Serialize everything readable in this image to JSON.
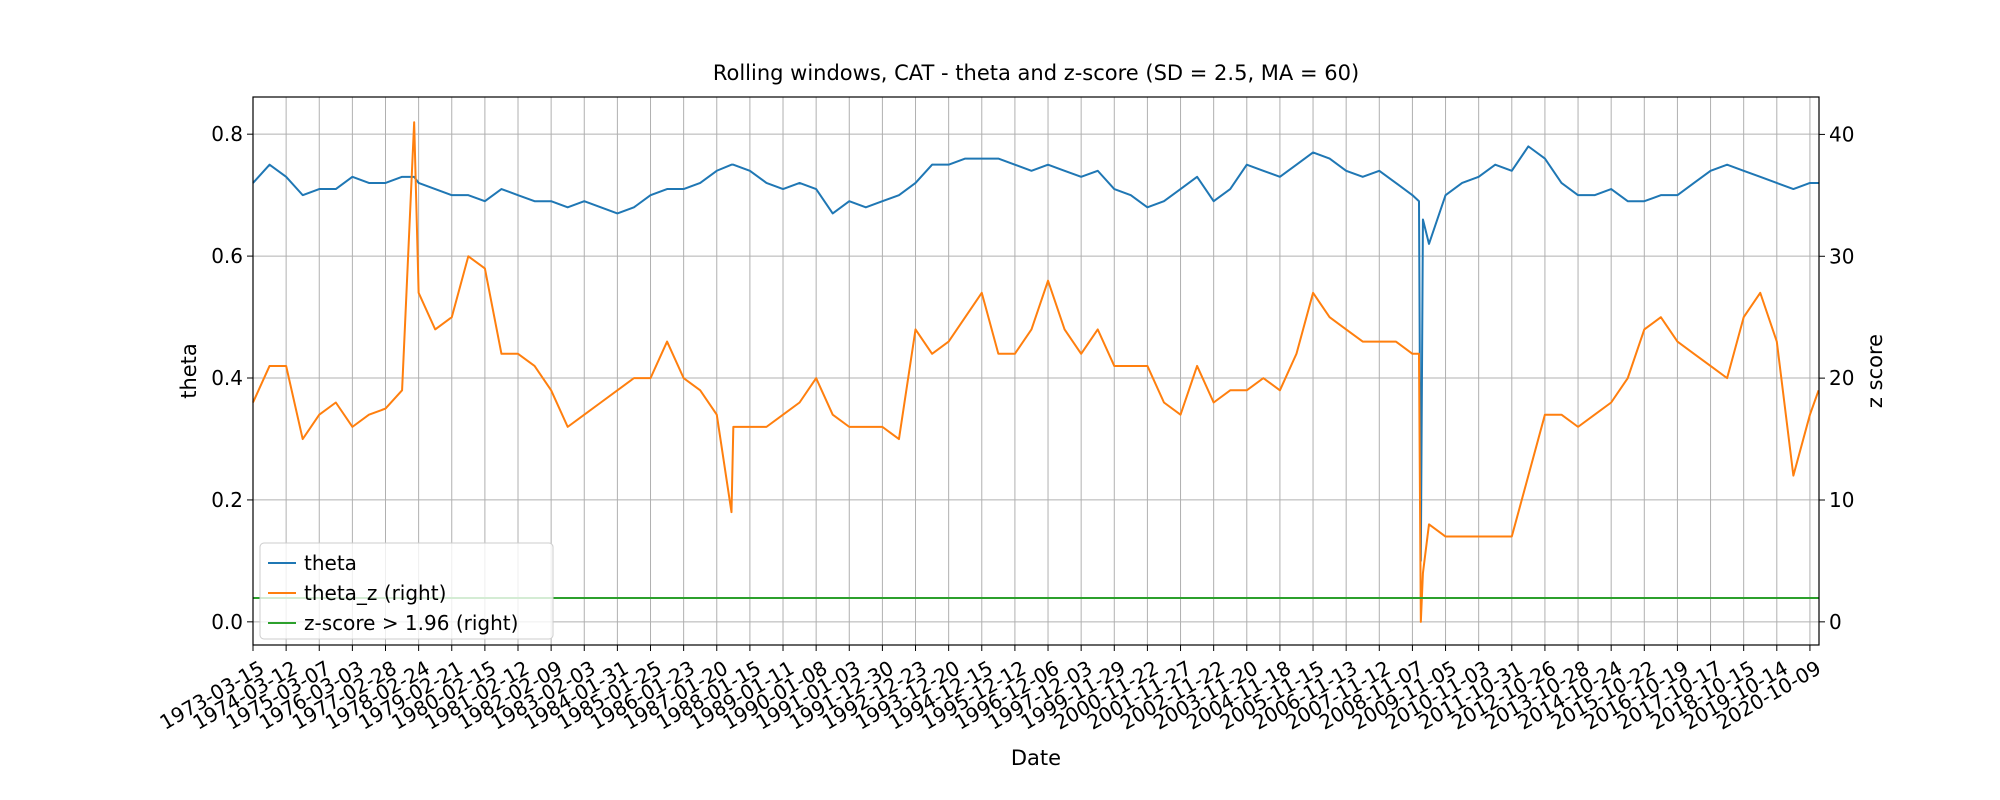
{
  "chart_data": {
    "type": "line",
    "title": "Rolling windows, CAT - theta and z-score (SD = 2.5, MA = 60)",
    "xlabel": "Date",
    "ylabel": "theta",
    "y2label": "z score",
    "grid": true,
    "legend": "lower left",
    "xlim": [
      0,
      11913
    ],
    "xticks": [
      {
        "value": 0,
        "label": "1973-03-15"
      },
      {
        "value": 252,
        "label": "1974-03-12"
      },
      {
        "value": 504,
        "label": "1975-03-07"
      },
      {
        "value": 756,
        "label": "1976-03-03"
      },
      {
        "value": 1008,
        "label": "1977-02-28"
      },
      {
        "value": 1260,
        "label": "1978-02-24"
      },
      {
        "value": 1512,
        "label": "1979-02-21"
      },
      {
        "value": 1764,
        "label": "1980-02-15"
      },
      {
        "value": 2016,
        "label": "1981-02-12"
      },
      {
        "value": 2268,
        "label": "1982-02-09"
      },
      {
        "value": 2520,
        "label": "1983-02-03"
      },
      {
        "value": 2772,
        "label": "1984-01-31"
      },
      {
        "value": 3024,
        "label": "1985-01-25"
      },
      {
        "value": 3276,
        "label": "1986-01-23"
      },
      {
        "value": 3528,
        "label": "1987-01-20"
      },
      {
        "value": 3780,
        "label": "1988-01-15"
      },
      {
        "value": 4032,
        "label": "1989-01-11"
      },
      {
        "value": 4284,
        "label": "1990-01-08"
      },
      {
        "value": 4536,
        "label": "1991-01-03"
      },
      {
        "value": 4788,
        "label": "1991-12-30"
      },
      {
        "value": 5040,
        "label": "1992-12-23"
      },
      {
        "value": 5292,
        "label": "1993-12-20"
      },
      {
        "value": 5544,
        "label": "1994-12-15"
      },
      {
        "value": 5796,
        "label": "1995-12-12"
      },
      {
        "value": 6048,
        "label": "1996-12-06"
      },
      {
        "value": 6300,
        "label": "1997-12-03"
      },
      {
        "value": 6552,
        "label": "1999-11-29"
      },
      {
        "value": 6804,
        "label": "2000-11-22"
      },
      {
        "value": 7056,
        "label": "2001-11-27"
      },
      {
        "value": 7308,
        "label": "2002-11-22"
      },
      {
        "value": 7560,
        "label": "2003-11-20"
      },
      {
        "value": 7812,
        "label": "2004-11-18"
      },
      {
        "value": 8064,
        "label": "2005-11-15"
      },
      {
        "value": 8316,
        "label": "2006-11-13"
      },
      {
        "value": 8568,
        "label": "2007-11-12"
      },
      {
        "value": 8820,
        "label": "2008-11-07"
      },
      {
        "value": 9072,
        "label": "2009-11-05"
      },
      {
        "value": 9324,
        "label": "2010-11-03"
      },
      {
        "value": 9576,
        "label": "2011-10-31"
      },
      {
        "value": 9828,
        "label": "2012-10-26"
      },
      {
        "value": 10080,
        "label": "2013-10-28"
      },
      {
        "value": 10332,
        "label": "2014-10-24"
      },
      {
        "value": 10584,
        "label": "2015-10-22"
      },
      {
        "value": 10836,
        "label": "2016-10-19"
      },
      {
        "value": 11088,
        "label": "2017-10-17"
      },
      {
        "value": 11340,
        "label": "2018-10-15"
      },
      {
        "value": 11592,
        "label": "2019-10-14"
      },
      {
        "value": 11844,
        "label": "2020-10-09"
      }
    ],
    "ylim": [
      -0.038,
      0.861
    ],
    "yticks": [
      {
        "value": 0,
        "label": "0.0"
      },
      0.2,
      0.4,
      0.6,
      0.8
    ],
    "y2lim": [
      -1.9,
      43.07
    ],
    "y2ticks": [
      0,
      10,
      20,
      30,
      40
    ],
    "x": [
      0,
      126,
      252,
      378,
      504,
      630,
      756,
      882,
      1008,
      1134,
      1226,
      1260,
      1386,
      1512,
      1638,
      1764,
      1890,
      2016,
      2142,
      2268,
      2394,
      2520,
      2646,
      2772,
      2898,
      3024,
      3150,
      3276,
      3402,
      3528,
      3640,
      3654,
      3780,
      3906,
      4032,
      4158,
      4284,
      4410,
      4536,
      4662,
      4788,
      4914,
      5040,
      5166,
      5292,
      5418,
      5544,
      5670,
      5796,
      5922,
      6048,
      6174,
      6300,
      6426,
      6552,
      6678,
      6804,
      6930,
      7056,
      7182,
      7308,
      7434,
      7560,
      7686,
      7812,
      7938,
      8064,
      8190,
      8316,
      8442,
      8568,
      8694,
      8820,
      8870,
      8884,
      8900,
      8946,
      9072,
      9198,
      9324,
      9450,
      9576,
      9702,
      9828,
      9954,
      10080,
      10206,
      10332,
      10458,
      10584,
      10710,
      10836,
      10962,
      11088,
      11214,
      11340,
      11466,
      11592,
      11718,
      11844,
      11910
    ],
    "series": [
      {
        "name": "theta",
        "color": "#1f77b4",
        "values": [
          0.72,
          0.75,
          0.73,
          0.7,
          0.71,
          0.71,
          0.73,
          0.72,
          0.72,
          0.73,
          0.73,
          0.72,
          0.71,
          0.7,
          0.7,
          0.69,
          0.71,
          0.7,
          0.69,
          0.69,
          0.68,
          0.69,
          0.68,
          0.67,
          0.68,
          0.7,
          0.71,
          0.71,
          0.72,
          0.74,
          0.75,
          0.75,
          0.74,
          0.72,
          0.71,
          0.72,
          0.71,
          0.67,
          0.69,
          0.68,
          0.69,
          0.7,
          0.72,
          0.75,
          0.75,
          0.76,
          0.76,
          0.76,
          0.75,
          0.74,
          0.75,
          0.74,
          0.73,
          0.74,
          0.71,
          0.7,
          0.68,
          0.69,
          0.71,
          0.73,
          0.69,
          0.71,
          0.75,
          0.74,
          0.73,
          0.75,
          0.77,
          0.76,
          0.74,
          0.73,
          0.74,
          0.72,
          0.7,
          0.69,
          0.1,
          0.66,
          0.62,
          0.7,
          0.72,
          0.73,
          0.75,
          0.74,
          0.78,
          0.76,
          0.72,
          0.7,
          0.7,
          0.71,
          0.69,
          0.69,
          0.7,
          0.7,
          0.72,
          0.74,
          0.75,
          0.74,
          0.73,
          0.72,
          0.71,
          0.72,
          0.72
        ]
      },
      {
        "name": "theta_z (right)",
        "color": "#ff7f0e",
        "axis": "y2",
        "values": [
          18,
          21,
          21,
          15,
          17,
          18,
          16,
          17,
          17.5,
          19,
          41,
          27,
          24,
          25,
          30,
          29,
          22,
          22,
          21,
          19,
          16,
          17,
          18,
          19,
          20,
          20,
          23,
          20,
          19,
          17,
          9,
          16,
          16,
          16,
          17,
          18,
          20,
          17,
          16,
          16,
          16,
          15,
          24,
          22,
          23,
          25,
          27,
          22,
          22,
          24,
          28,
          24,
          22,
          24,
          21,
          21,
          21,
          18,
          17,
          21,
          18,
          19,
          19,
          20,
          19,
          22,
          27,
          25,
          24,
          23,
          23,
          23,
          22,
          22,
          0,
          4,
          8,
          7,
          7,
          7,
          7,
          7,
          12,
          17,
          17,
          16,
          17,
          18,
          20,
          24,
          25,
          23,
          22,
          21,
          20,
          25,
          27,
          23,
          12,
          17,
          19
        ]
      },
      {
        "name": "z-score > 1.96 (right)",
        "color": "#2ca02c",
        "axis": "y2",
        "x": [
          0,
          11910
        ],
        "values": [
          1.96,
          1.96
        ]
      }
    ]
  }
}
